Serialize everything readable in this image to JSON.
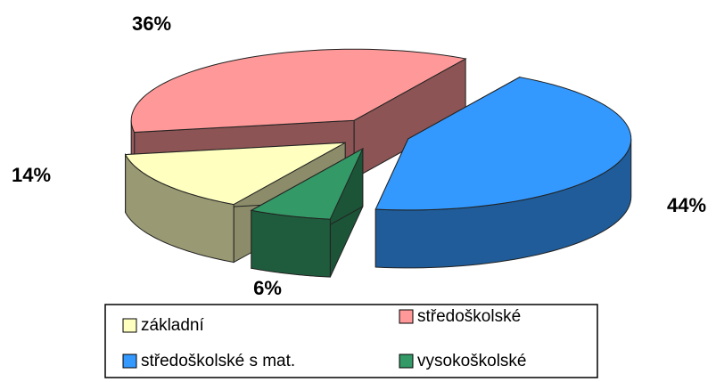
{
  "chart_data": {
    "type": "pie3d",
    "categories": [
      "základní",
      "středoškolské",
      "středoškolské s mat.",
      "vysokoškolské"
    ],
    "values": [
      14,
      36,
      44,
      6
    ],
    "value_labels": [
      "14%",
      "36%",
      "44%",
      "6%"
    ],
    "colors": [
      "#ffffc0",
      "#ff9999",
      "#3399ff",
      "#339966"
    ],
    "legend": "bottom"
  }
}
